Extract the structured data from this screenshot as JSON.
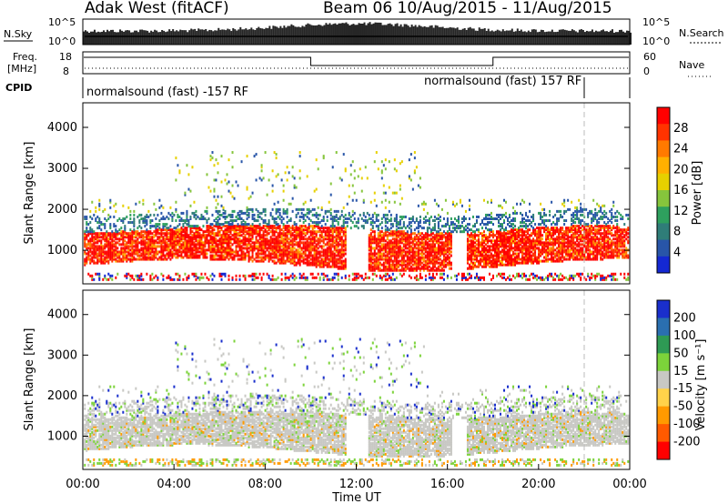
{
  "header": {
    "station": "Adak West (fitACF)",
    "beam_dates": "Beam 06  10/Aug/2015 - 11/Aug/2015"
  },
  "top_panels": {
    "nsky_label": "N.Sky",
    "nsky_ticks": [
      "10^5",
      "10^0"
    ],
    "nsearch_label": "N.Search",
    "nsearch_ticks": [
      "10^5",
      "10^0"
    ],
    "freq_label_1": "Freq.",
    "freq_label_2": "[MHz]",
    "freq_ticks": [
      "18",
      "8"
    ],
    "nave_label": "Nave",
    "nave_ticks": [
      "60",
      "0"
    ],
    "cpid_label": "CPID",
    "cpid_segments": [
      "normalsound (fast) -157 RF",
      "normalsound (fast) 157 RF"
    ]
  },
  "chart_data": [
    {
      "type": "heatmap",
      "title": "",
      "xlabel": "",
      "ylabel": "Slant Range [km]",
      "ylim": [
        180,
        4600
      ],
      "xlim_hours": [
        0,
        24
      ],
      "yticks": [
        "1000",
        "2000",
        "3000",
        "4000"
      ],
      "colorbar_label": "Power [dB]",
      "colorbar_ticks": [
        "28",
        "24",
        "20",
        "16",
        "12",
        "8",
        "4"
      ],
      "colorbar_colors": [
        "#ff0000",
        "#ff3300",
        "#ff7a00",
        "#ffb000",
        "#e6d000",
        "#86c53c",
        "#2ea05e",
        "#2f7d78",
        "#2855a8",
        "#1428d2"
      ]
    },
    {
      "type": "heatmap",
      "title": "",
      "xlabel": "Time UT",
      "ylabel": "Slant Range [km]",
      "ylim": [
        180,
        4600
      ],
      "xlim_hours": [
        0,
        24
      ],
      "yticks": [
        "1000",
        "2000",
        "3000",
        "4000"
      ],
      "xticks": [
        "00:00",
        "04:00",
        "08:00",
        "12:00",
        "16:00",
        "20:00",
        "00:00"
      ],
      "colorbar_label": "Velocity [m s⁻¹]",
      "colorbar_ticks": [
        "200",
        "100",
        "50",
        "15",
        "-15",
        "-50",
        "-100",
        "-200"
      ],
      "colorbar_colors": [
        "#1a2fcc",
        "#2a6fb0",
        "#2e9a54",
        "#7cd33a",
        "#c8c8c4",
        "#ffd24a",
        "#ff9a00",
        "#ff5a00",
        "#ff0000"
      ]
    }
  ]
}
